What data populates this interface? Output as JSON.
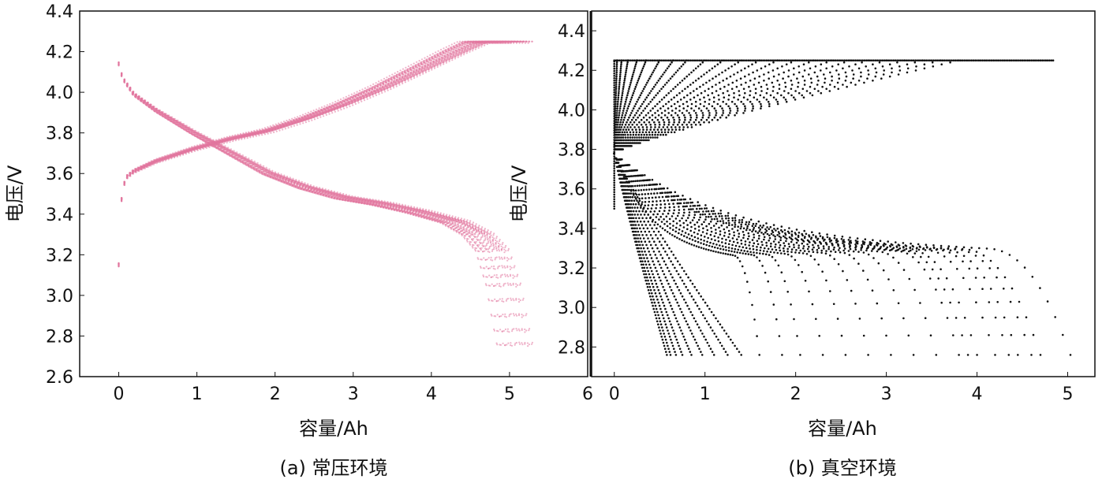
{
  "chart_data": [
    {
      "id": "a",
      "type": "scatter",
      "caption": "(a) 常压环境",
      "xlabel": "容量/Ah",
      "ylabel": "电压/V",
      "xlim": [
        -0.5,
        6
      ],
      "ylim": [
        2.6,
        4.4
      ],
      "xticks": [
        "0",
        "1",
        "2",
        "3",
        "4",
        "5",
        "6"
      ],
      "yticks": [
        "2.6",
        "2.8",
        "3.0",
        "3.2",
        "3.4",
        "3.6",
        "3.8",
        "4.0",
        "4.2",
        "4.4"
      ],
      "grid": false,
      "legend": "none",
      "marker_color": "#e2769e",
      "series": [
        {
          "curve": "charge",
          "points": [
            [
              0.0,
              3.15
            ],
            [
              0.02,
              3.4
            ],
            [
              0.05,
              3.52
            ],
            [
              0.1,
              3.58
            ],
            [
              0.2,
              3.61
            ],
            [
              0.5,
              3.66
            ],
            [
              1.0,
              3.72
            ],
            [
              1.5,
              3.77
            ],
            [
              2.0,
              3.81
            ],
            [
              2.5,
              3.87
            ],
            [
              3.0,
              3.94
            ],
            [
              3.5,
              4.02
            ],
            [
              4.0,
              4.11
            ],
            [
              4.5,
              4.2
            ],
            [
              4.8,
              4.25
            ],
            [
              5.3,
              4.25
            ]
          ]
        },
        {
          "curve": "discharge",
          "points": [
            [
              0.0,
              4.14
            ],
            [
              0.05,
              4.07
            ],
            [
              0.2,
              3.99
            ],
            [
              0.5,
              3.91
            ],
            [
              1.0,
              3.8
            ],
            [
              1.5,
              3.7
            ],
            [
              2.0,
              3.6
            ],
            [
              2.5,
              3.53
            ],
            [
              3.0,
              3.48
            ],
            [
              3.5,
              3.45
            ],
            [
              4.0,
              3.41
            ],
            [
              4.5,
              3.36
            ],
            [
              4.8,
              3.3
            ],
            [
              5.0,
              3.22
            ],
            [
              5.15,
              3.05
            ],
            [
              5.25,
              2.85
            ],
            [
              5.3,
              2.76
            ]
          ]
        }
      ]
    },
    {
      "id": "b",
      "type": "scatter",
      "caption": "(b) 真空环境",
      "xlabel": "容量/Ah",
      "ylabel": "电压/V",
      "xlim": [
        -0.25,
        5.3
      ],
      "ylim": [
        2.65,
        4.5
      ],
      "xticks": [
        "0",
        "1",
        "2",
        "3",
        "4",
        "5"
      ],
      "yticks": [
        "2.8",
        "3.0",
        "3.2",
        "3.4",
        "3.6",
        "3.8",
        "4.0",
        "4.2",
        "4.4"
      ],
      "grid": false,
      "legend": "none",
      "marker_color": "#111111",
      "series": [
        {
          "curve": "charge",
          "end_capacities": [
            0.03,
            0.08,
            0.15,
            0.25,
            0.35,
            0.5,
            0.65,
            0.8,
            1.0,
            1.2,
            1.4,
            1.6,
            1.8,
            2.0,
            2.2,
            2.4,
            2.6,
            2.8,
            3.0,
            3.2,
            3.4,
            3.6,
            3.8
          ],
          "start_voltage": 3.78,
          "plateau_voltage": 4.25,
          "plateau_end": 4.85
        },
        {
          "curve": "discharge",
          "end_capacities": [
            0.58,
            0.62,
            0.68,
            0.75,
            0.85,
            0.97,
            1.1,
            1.25,
            1.4,
            1.6,
            1.85,
            2.05,
            2.3,
            2.55,
            2.8,
            3.05,
            3.3,
            3.55,
            3.8,
            3.9,
            4.0,
            4.2,
            4.35,
            4.45,
            4.6,
            4.7,
            5.03
          ],
          "start_voltage": 3.78,
          "end_voltage": 2.76
        }
      ]
    }
  ]
}
